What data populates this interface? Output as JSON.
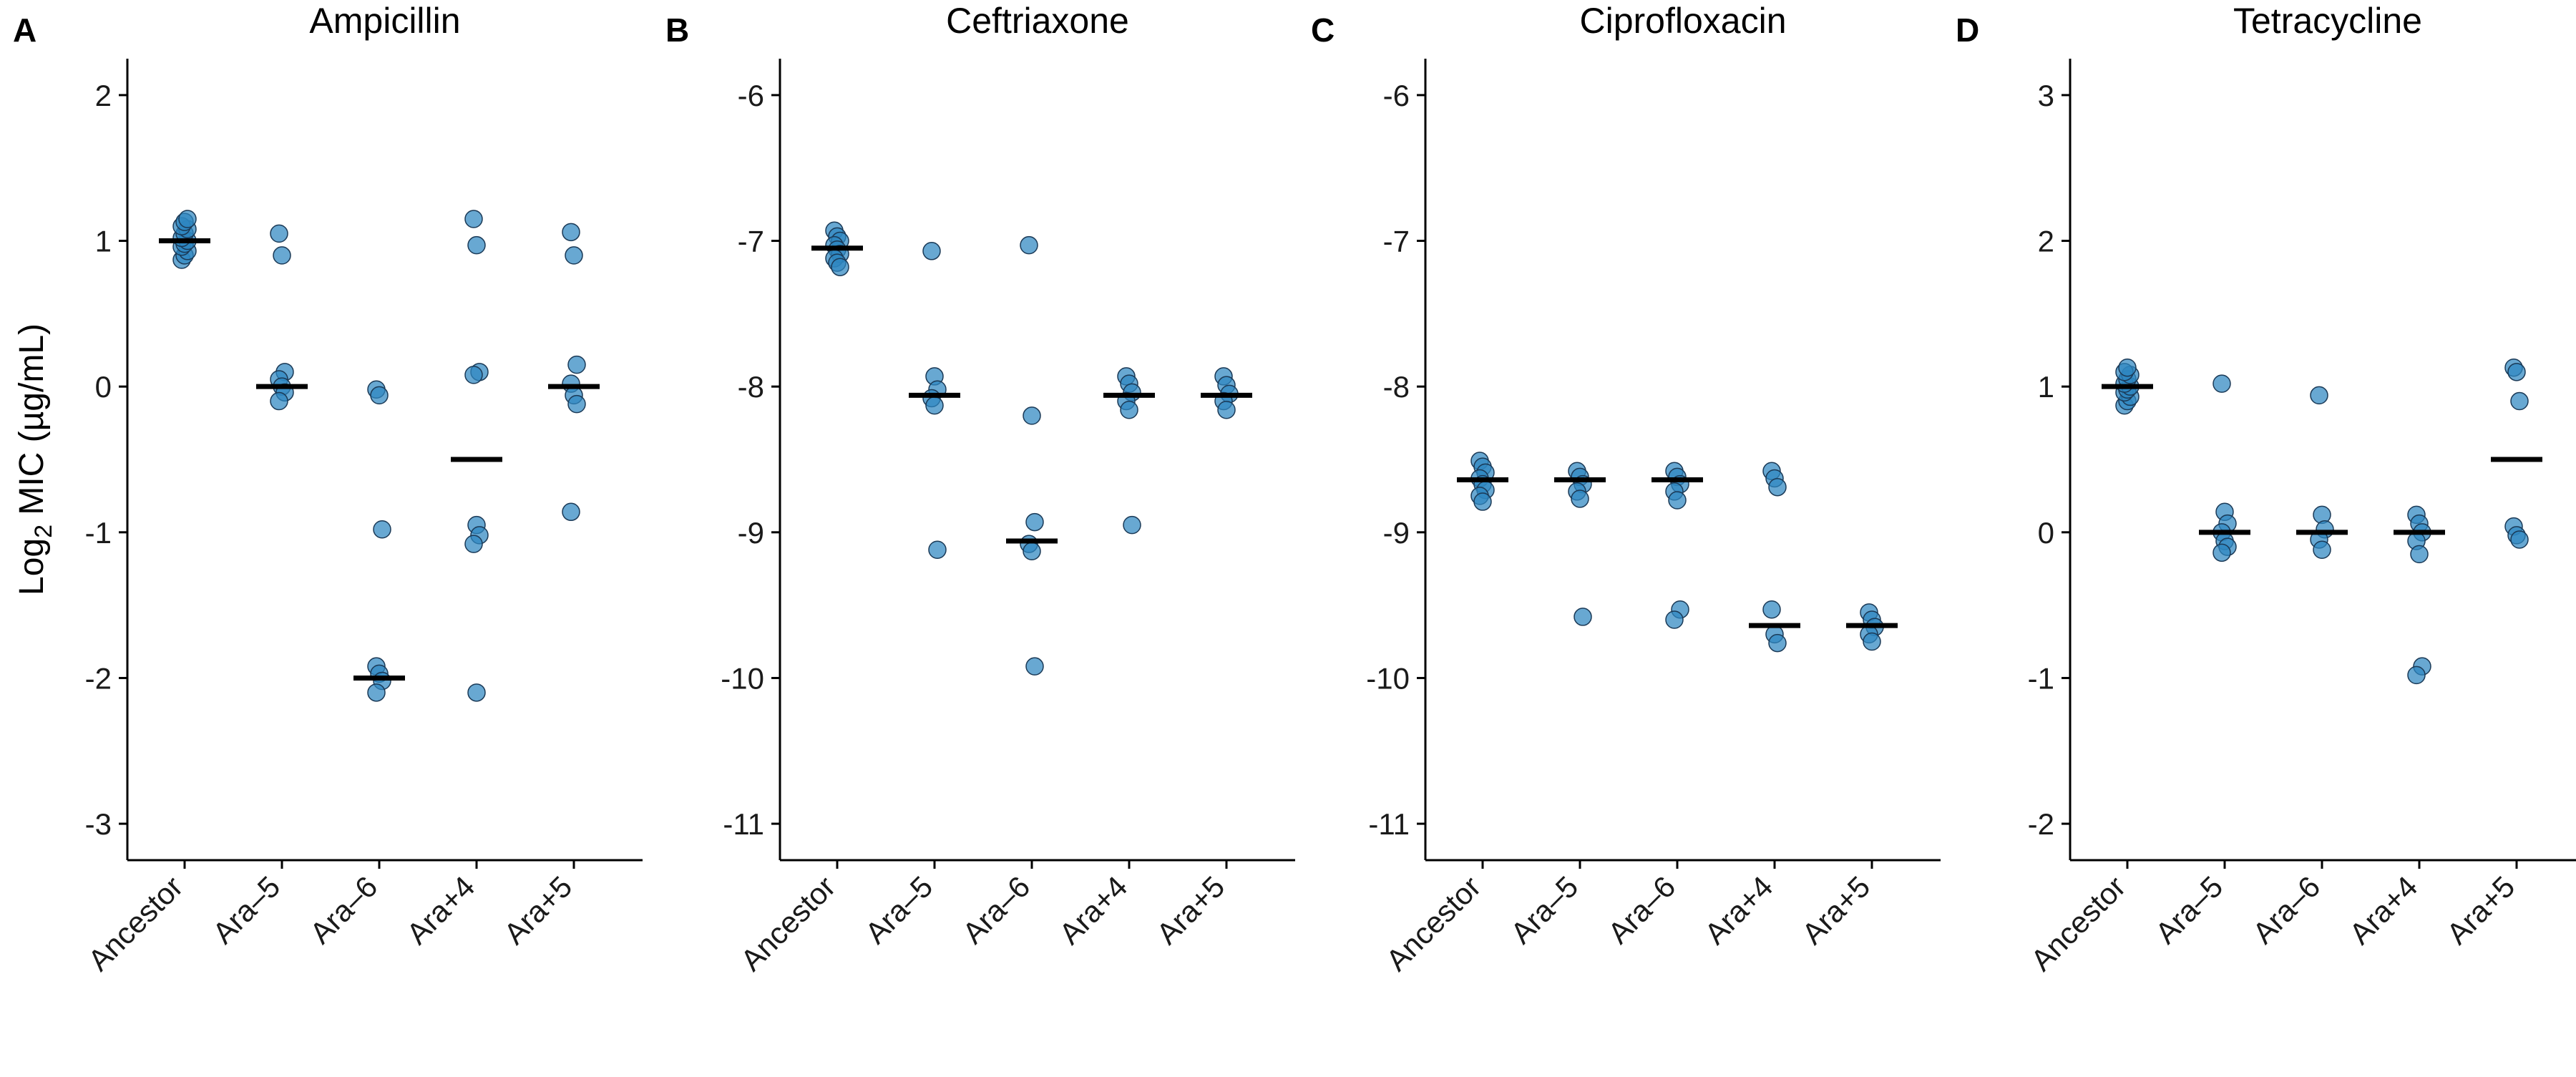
{
  "figure": {
    "ylabel_prefix": "Log",
    "ylabel_subscript": "2",
    "ylabel_suffix": " MIC (µg/mL)",
    "point_color": "#2E86C1",
    "point_edge_color": "#1B3A57",
    "median_color": "#000000"
  },
  "chart_data": [
    {
      "type": "scatter",
      "panel": "A",
      "title": "Ampicillin",
      "categories": [
        "Ancestor",
        "Ara–5",
        "Ara–6",
        "Ara+4",
        "Ara+5"
      ],
      "ylim": [
        -3.25,
        2.25
      ],
      "yticks": [
        -3,
        -2,
        -1,
        0,
        1,
        2
      ],
      "ytick_labels": [
        "-3",
        "-2",
        "-1",
        "0",
        "1",
        "2"
      ],
      "grid": false,
      "points": [
        [
          0.87,
          0.9,
          0.93,
          0.96,
          0.98,
          1.0,
          1.02,
          1.05,
          1.08,
          1.1,
          1.13,
          1.15
        ],
        [
          1.05,
          0.9,
          0.1,
          0.05,
          0.0,
          -0.04,
          -0.1
        ],
        [
          -0.02,
          -0.06,
          -0.98,
          -1.92,
          -1.97,
          -2.02,
          -2.1
        ],
        [
          1.15,
          0.97,
          0.1,
          0.08,
          -0.95,
          -1.02,
          -1.08,
          -2.1
        ],
        [
          1.06,
          0.9,
          0.15,
          0.02,
          -0.06,
          -0.12,
          -0.86
        ]
      ],
      "medians": [
        1.0,
        0.0,
        -2.0,
        -0.5,
        0.0
      ]
    },
    {
      "type": "scatter",
      "panel": "B",
      "title": "Ceftriaxone",
      "categories": [
        "Ancestor",
        "Ara–5",
        "Ara–6",
        "Ara+4",
        "Ara+5"
      ],
      "ylim": [
        -11.25,
        -5.75
      ],
      "yticks": [
        -11,
        -10,
        -9,
        -8,
        -7,
        -6
      ],
      "ytick_labels": [
        "-11",
        "-10",
        "-9",
        "-8",
        "-7",
        "-6"
      ],
      "grid": false,
      "points": [
        [
          -6.93,
          -6.97,
          -7.0,
          -7.03,
          -7.06,
          -7.09,
          -7.12,
          -7.15,
          -7.18
        ],
        [
          -7.07,
          -7.93,
          -8.02,
          -8.08,
          -8.13,
          -9.12
        ],
        [
          -7.03,
          -8.2,
          -8.93,
          -9.08,
          -9.13,
          -9.92
        ],
        [
          -7.93,
          -7.98,
          -8.04,
          -8.1,
          -8.16,
          -8.95
        ],
        [
          -7.93,
          -7.99,
          -8.05,
          -8.1,
          -8.16
        ]
      ],
      "medians": [
        -7.05,
        -8.06,
        -9.06,
        -8.06,
        -8.06
      ]
    },
    {
      "type": "scatter",
      "panel": "C",
      "title": "Ciprofloxacin",
      "categories": [
        "Ancestor",
        "Ara–5",
        "Ara–6",
        "Ara+4",
        "Ara+5"
      ],
      "ylim": [
        -11.25,
        -5.75
      ],
      "yticks": [
        -11,
        -10,
        -9,
        -8,
        -7,
        -6
      ],
      "ytick_labels": [
        "-11",
        "-10",
        "-9",
        "-8",
        "-7",
        "-6"
      ],
      "grid": false,
      "points": [
        [
          -8.51,
          -8.55,
          -8.59,
          -8.63,
          -8.67,
          -8.71,
          -8.75,
          -8.79
        ],
        [
          -8.58,
          -8.62,
          -8.67,
          -8.72,
          -8.77,
          -9.58
        ],
        [
          -8.58,
          -8.62,
          -8.67,
          -8.72,
          -8.78,
          -9.53,
          -9.6
        ],
        [
          -8.58,
          -8.63,
          -8.69,
          -9.53,
          -9.7,
          -9.76
        ],
        [
          -9.55,
          -9.6,
          -9.65,
          -9.7,
          -9.75
        ]
      ],
      "medians": [
        -8.64,
        -8.64,
        -8.64,
        -9.64,
        -9.64
      ]
    },
    {
      "type": "scatter",
      "panel": "D",
      "title": "Tetracycline",
      "categories": [
        "Ancestor",
        "Ara–5",
        "Ara–6",
        "Ara+4",
        "Ara+5"
      ],
      "ylim": [
        -2.25,
        3.25
      ],
      "yticks": [
        -2,
        -1,
        0,
        1,
        2,
        3
      ],
      "ytick_labels": [
        "-2",
        "-1",
        "0",
        "1",
        "2",
        "3"
      ],
      "grid": false,
      "points": [
        [
          0.87,
          0.9,
          0.93,
          0.96,
          0.98,
          1.0,
          1.02,
          1.05,
          1.08,
          1.1,
          1.13
        ],
        [
          1.02,
          0.14,
          0.06,
          0.0,
          -0.06,
          -0.1,
          -0.14
        ],
        [
          0.94,
          0.12,
          0.02,
          -0.05,
          -0.12
        ],
        [
          0.12,
          0.06,
          0.0,
          -0.06,
          -0.15,
          -0.92,
          -0.98
        ],
        [
          1.13,
          1.1,
          0.9,
          0.04,
          -0.02,
          -0.05
        ]
      ],
      "medians": [
        1.0,
        0.0,
        0.0,
        0.0,
        0.5
      ]
    }
  ]
}
